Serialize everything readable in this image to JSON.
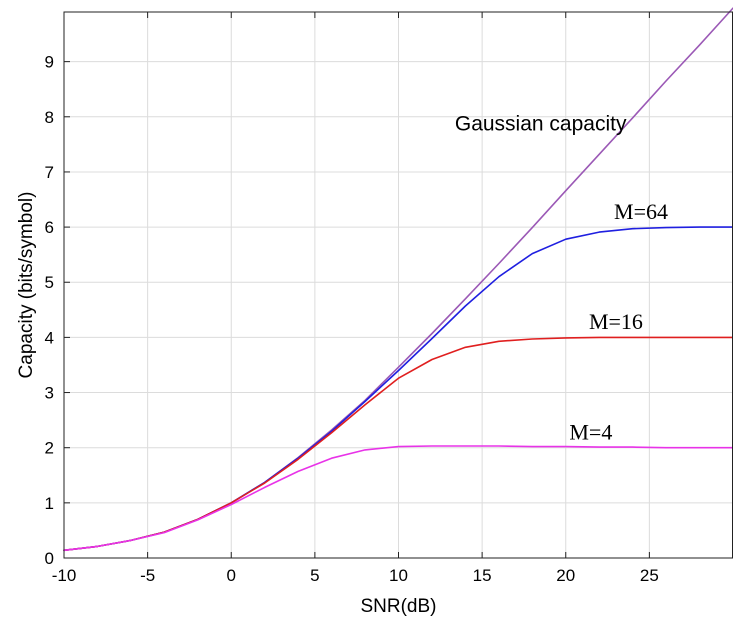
{
  "chart_data": {
    "type": "line",
    "title": "",
    "xlabel": "SNR(dB)",
    "ylabel": "Capacity (bits/symbol)",
    "xlim": [
      -10,
      30
    ],
    "ylim": [
      0,
      9.9
    ],
    "xticks": [
      -10,
      -5,
      0,
      5,
      10,
      15,
      20,
      25
    ],
    "yticks": [
      0,
      1,
      2,
      3,
      4,
      5,
      6,
      7,
      8,
      9
    ],
    "grid": true,
    "legend": "none",
    "series": [
      {
        "name": "Gaussian capacity",
        "color": "#9b59b6",
        "x": [
          -10,
          -8,
          -6,
          -4,
          -2,
          0,
          2,
          4,
          6,
          8,
          10,
          12,
          14,
          16,
          18,
          20,
          22,
          24,
          26,
          28,
          30
        ],
        "y": [
          0.14,
          0.21,
          0.32,
          0.47,
          0.7,
          1.0,
          1.37,
          1.82,
          2.32,
          2.86,
          3.46,
          4.07,
          4.7,
          5.34,
          5.99,
          6.66,
          7.32,
          7.98,
          8.65,
          9.3,
          9.97
        ]
      },
      {
        "name": "M=64",
        "color": "#1f1fe0",
        "x": [
          -10,
          -8,
          -6,
          -4,
          -2,
          0,
          2,
          4,
          6,
          8,
          10,
          12,
          14,
          16,
          18,
          20,
          22,
          24,
          26,
          28,
          30
        ],
        "y": [
          0.14,
          0.21,
          0.32,
          0.47,
          0.7,
          1.0,
          1.37,
          1.81,
          2.3,
          2.84,
          3.4,
          3.98,
          4.57,
          5.1,
          5.52,
          5.78,
          5.91,
          5.97,
          5.99,
          6.0,
          6.0
        ]
      },
      {
        "name": "M=16",
        "color": "#e01f1f",
        "x": [
          -10,
          -8,
          -6,
          -4,
          -2,
          0,
          2,
          4,
          6,
          8,
          10,
          12,
          14,
          16,
          18,
          20,
          22,
          24,
          26,
          28,
          30
        ],
        "y": [
          0.14,
          0.21,
          0.32,
          0.47,
          0.7,
          1.0,
          1.36,
          1.79,
          2.27,
          2.78,
          3.26,
          3.6,
          3.82,
          3.93,
          3.97,
          3.99,
          4.0,
          4.0,
          4.0,
          4.0,
          4.0
        ]
      },
      {
        "name": "M=4",
        "color": "#e833e8",
        "x": [
          -10,
          -8,
          -6,
          -4,
          -2,
          0,
          2,
          4,
          6,
          8,
          10,
          12,
          14,
          16,
          18,
          20,
          22,
          24,
          26,
          28,
          30
        ],
        "y": [
          0.14,
          0.21,
          0.32,
          0.46,
          0.69,
          0.97,
          1.28,
          1.57,
          1.81,
          1.96,
          2.02,
          2.03,
          2.03,
          2.03,
          2.02,
          2.02,
          2.01,
          2.01,
          2.0,
          2.0,
          2.0
        ]
      }
    ],
    "annotations": [
      {
        "text": "Gaussian capacity",
        "x": 18.5,
        "y": 7.75,
        "style": "sans"
      },
      {
        "text": "M=64",
        "x": 24.5,
        "y": 6.15,
        "style": "serif"
      },
      {
        "text": "M=16",
        "x": 23.0,
        "y": 4.15,
        "style": "serif"
      },
      {
        "text": "M=4",
        "x": 21.5,
        "y": 2.15,
        "style": "serif"
      }
    ]
  }
}
